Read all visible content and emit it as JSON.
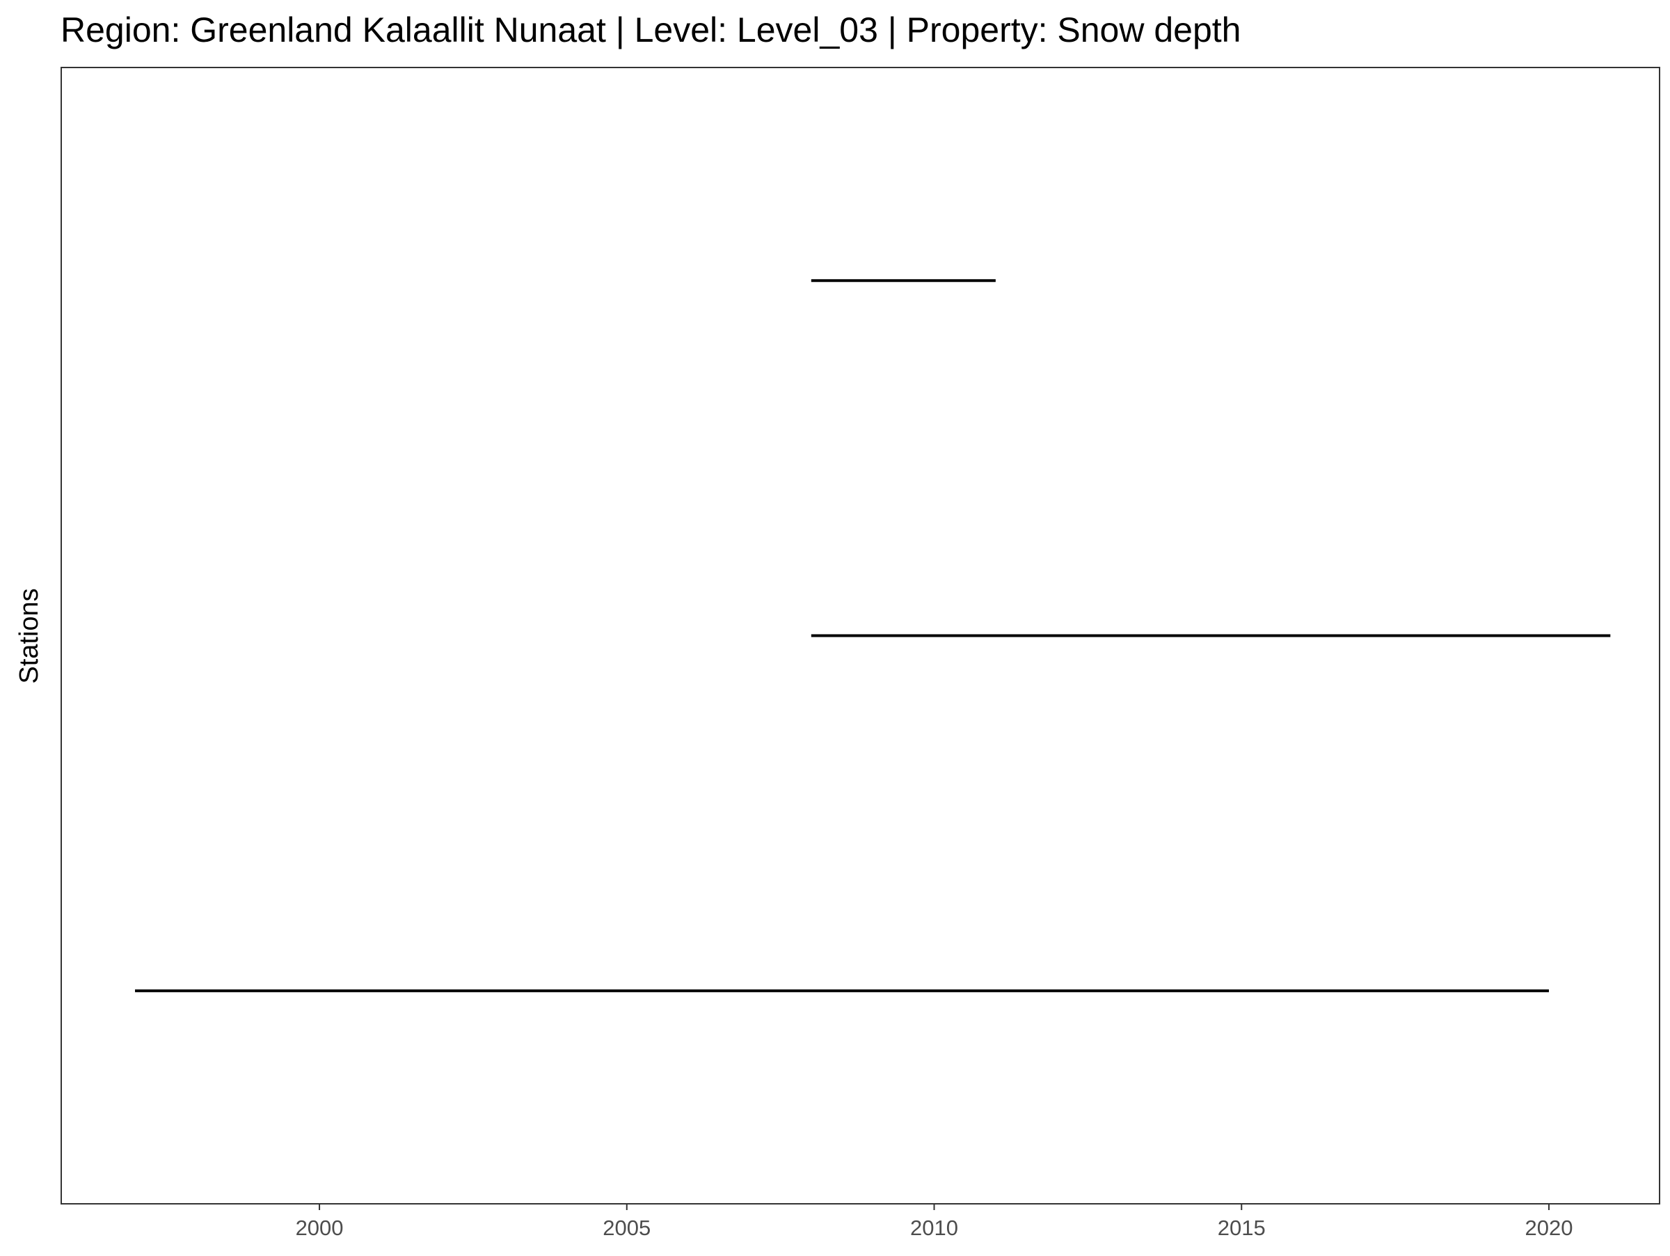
{
  "chart_data": {
    "type": "line",
    "title": "Region: Greenland Kalaallit Nunaat | Level: Level_03 | Property: Snow depth",
    "xlabel": "",
    "ylabel": "Stations",
    "xlim": [
      1995.8,
      2021.8
    ],
    "x_ticks": [
      2000,
      2005,
      2010,
      2015,
      2020
    ],
    "x_tick_labels": [
      "2000",
      "2005",
      "2010",
      "2015",
      "2020"
    ],
    "grid": false,
    "legend": "none",
    "series": [
      {
        "x": [
          1997,
          2020
        ],
        "y": [
          1,
          1
        ]
      },
      {
        "x": [
          2008,
          2021
        ],
        "y": [
          2,
          2
        ]
      },
      {
        "x": [
          2008,
          2011
        ],
        "y": [
          3,
          3
        ]
      }
    ],
    "ylim": [
      0.4,
      3.6
    ],
    "colors": {
      "line": "#000000",
      "panel_border": "#333333",
      "tick": "#333333"
    }
  }
}
